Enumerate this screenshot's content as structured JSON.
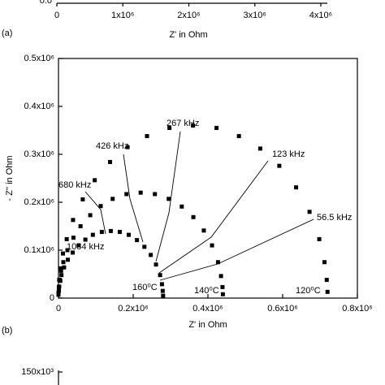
{
  "chart_data": {
    "type": "scatter",
    "xlabel": "Z' in Ohm",
    "ylabel": "- Z'' in Ohm",
    "panel_label": "(b)",
    "xlim": [
      0,
      800000
    ],
    "ylim": [
      0,
      500000
    ],
    "xticks": [
      0,
      {
        "value": 200000,
        "label": "0.2x10⁶"
      },
      {
        "value": 400000,
        "label": "0.4x10⁶"
      },
      {
        "value": 600000,
        "label": "0.6x10⁶"
      },
      {
        "value": 800000,
        "label": "0.8x10⁶"
      }
    ],
    "yticks": [
      0,
      {
        "value": 100000,
        "label": "0.1x10⁶"
      },
      {
        "value": 200000,
        "label": "0.2x10⁶"
      },
      {
        "value": 300000,
        "label": "0.3x10⁶"
      },
      {
        "value": 400000,
        "label": "0.4x10⁶"
      },
      {
        "value": 500000,
        "label": "0.5x10⁶"
      }
    ],
    "series": [
      {
        "color": "#000000",
        "x": [
          1000,
          2000,
          5000,
          12000,
          22000,
          39000,
          65000,
          97000,
          138000,
          185000,
          237000,
          297000,
          360000,
          423000,
          483000,
          540000,
          591000,
          636000,
          672000,
          698000,
          712000,
          718000,
          720000
        ],
        "values": [
          19000,
          38000,
          62000,
          93000,
          123000,
          163000,
          206000,
          246000,
          284000,
          315000,
          338000,
          355000,
          360000,
          355000,
          338000,
          312000,
          276000,
          231000,
          180000,
          123000,
          75000,
          38000,
          13000
        ]
      },
      {
        "color": "#000000",
        "x": [
          0,
          1000,
          3000,
          7000,
          13000,
          24000,
          40000,
          59000,
          85000,
          113000,
          145000,
          182000,
          220000,
          258000,
          295000,
          330000,
          361000,
          389000,
          411000,
          427000,
          435000,
          439000,
          440000
        ],
        "values": [
          11000,
          23000,
          38000,
          57000,
          75000,
          100000,
          126000,
          150000,
          173000,
          192000,
          207000,
          217000,
          220000,
          217000,
          207000,
          191000,
          169000,
          141000,
          110000,
          75000,
          46000,
          23000,
          8000
        ]
      },
      {
        "color": "#000000",
        "x": [
          0,
          1000,
          2000,
          5000,
          8000,
          15000,
          25000,
          38000,
          54000,
          72000,
          92000,
          116000,
          140000,
          164000,
          188000,
          210000,
          230000,
          247000,
          261000,
          272000,
          277000,
          279000,
          280000
        ],
        "values": [
          7000,
          15000,
          24000,
          36000,
          48000,
          64000,
          80000,
          95000,
          110000,
          122000,
          132000,
          138000,
          140000,
          138000,
          132000,
          121000,
          107000,
          90000,
          70000,
          48000,
          29000,
          15000,
          5000
        ]
      }
    ],
    "annotations": [
      "267 kHz",
      "426 kHz",
      "123 kHz",
      "680 kHz",
      "56.5 kHz",
      "1084 kHz",
      "160⁰C",
      "140⁰C",
      "120⁰C"
    ]
  },
  "upper_fragment": {
    "panel_label": "(a)",
    "xlabel": "Z' in Ohm",
    "xlim": [
      0,
      4000000
    ],
    "cut_tick": "0.0",
    "xticks": [
      0,
      {
        "value": 1000000,
        "label": "1x10⁶"
      },
      {
        "value": 2000000,
        "label": "2x10⁶"
      },
      {
        "value": 3000000,
        "label": "3x10⁶"
      },
      {
        "value": 4000000,
        "label": "4x10⁶"
      }
    ]
  },
  "lower_fragment": {
    "ytick": "150x10³"
  }
}
